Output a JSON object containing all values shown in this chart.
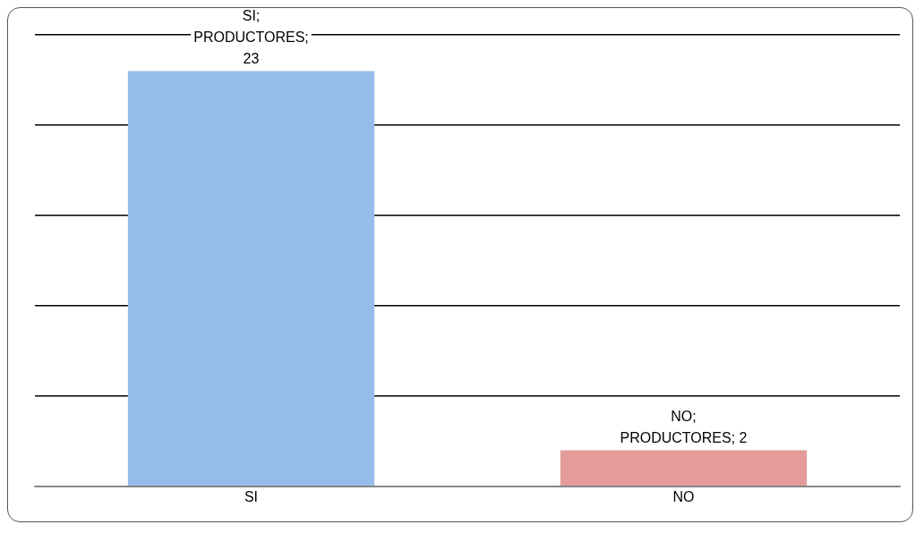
{
  "chart_data": {
    "type": "bar",
    "categories": [
      "SI",
      "NO"
    ],
    "series": [
      {
        "colors": [
          "#95bde8",
          "#e39c9a"
        ],
        "values": [
          23,
          2
        ],
        "value_labels": [
          "SI; PRODUCTORES; 23",
          "NO; PRODUCTORES; 2"
        ]
      }
    ],
    "ylim": [
      0,
      25
    ],
    "yticks": [
      0,
      5,
      10,
      15,
      20,
      25
    ],
    "grid": "y",
    "tick_labels": "x",
    "legend": false
  }
}
